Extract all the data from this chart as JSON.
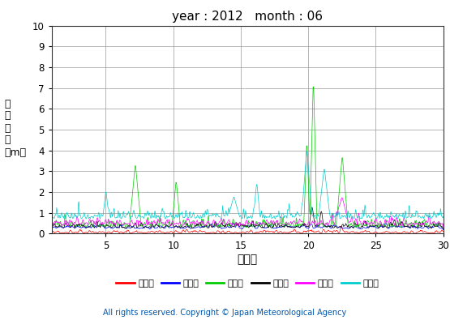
{
  "title": "year : 2012   month : 06",
  "xlabel": "（日）",
  "ylabel_lines": [
    "有",
    "義",
    "波",
    "高",
    "（m）"
  ],
  "xlim": [
    1,
    30
  ],
  "ylim": [
    0,
    10
  ],
  "yticks": [
    0,
    1,
    2,
    3,
    4,
    5,
    6,
    7,
    8,
    9,
    10
  ],
  "xticks": [
    5,
    10,
    15,
    20,
    25,
    30
  ],
  "series": [
    {
      "label": "上ノ国",
      "color": "#ff0000"
    },
    {
      "label": "江ノ島",
      "color": "#0000ff"
    },
    {
      "label": "石廂崎",
      "color": "#00cc00"
    },
    {
      "label": "経ヶ岸",
      "color": "#000000"
    },
    {
      "label": "生月島",
      "color": "#ff00ff"
    },
    {
      "label": "屋久島",
      "color": "#00cccc"
    }
  ],
  "copyright": "All rights reserved. Copyright © Japan Meteorological Agency",
  "copyright_color": "#0055aa",
  "background_color": "#ffffff",
  "grid_color": "#999999"
}
